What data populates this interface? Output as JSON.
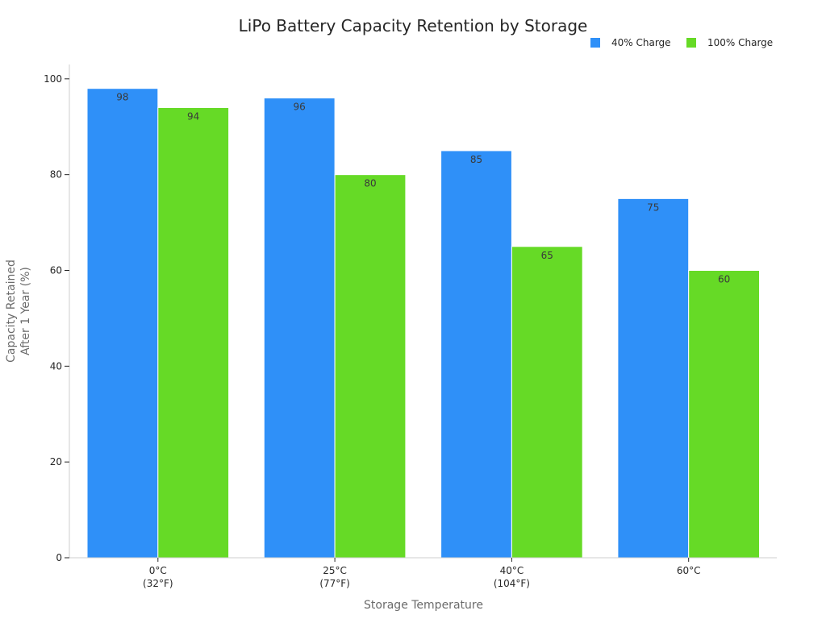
{
  "chart_data": {
    "type": "bar",
    "title": "LiPo Battery Capacity Retention by Storage",
    "xlabel": "Storage Temperature",
    "ylabel_lines": [
      "Capacity Retained",
      "After 1 Year (%)"
    ],
    "categories": [
      [
        "0°C",
        "(32°F)"
      ],
      [
        "25°C",
        "(77°F)"
      ],
      [
        "40°C",
        "(104°F)"
      ],
      [
        "60°C"
      ]
    ],
    "series": [
      {
        "name": "40% Charge",
        "color": "#2f90f8",
        "values": [
          98,
          96,
          85,
          75
        ]
      },
      {
        "name": "100% Charge",
        "color": "#66da26",
        "values": [
          94,
          80,
          65,
          60
        ]
      }
    ],
    "ylim": [
      0,
      103
    ],
    "yticks": [
      0,
      20,
      40,
      60,
      80,
      100
    ],
    "grid": false,
    "legend_position": "top-right"
  }
}
